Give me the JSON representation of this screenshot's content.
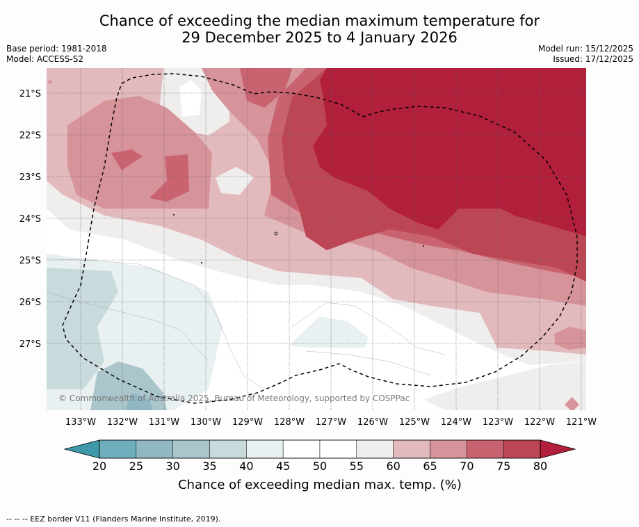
{
  "header": {
    "title_line1": "Chance of exceeding the median maximum temperature for",
    "title_line2": "29 December 2025 to 4 January 2026",
    "base_period": "Base period: 1981-2018",
    "model": "Model: ACCESS-S2",
    "model_run": "Model run: 15/12/2025",
    "issued": "Issued: 17/12/2025"
  },
  "map": {
    "lat_labels": [
      "21°S",
      "22°S",
      "23°S",
      "24°S",
      "25°S",
      "26°S",
      "27°S"
    ],
    "lon_labels": [
      "133°W",
      "132°W",
      "131°W",
      "130°W",
      "129°W",
      "128°W",
      "127°W",
      "126°W",
      "125°W",
      "124°W",
      "123°W",
      "122°W",
      "121°W"
    ],
    "copyright": "© Commonwealth of Australia 2025, Bureau of Meteorology, supported by COSPPac"
  },
  "colorbar": {
    "ticks": [
      "20",
      "25",
      "30",
      "35",
      "40",
      "45",
      "50",
      "55",
      "60",
      "65",
      "70",
      "75",
      "80"
    ],
    "colors": [
      "#6eaebd",
      "#8fb8c4",
      "#aac6cc",
      "#c9dadd",
      "#e9f0f2",
      "#ffffff",
      "#ffffff",
      "#efeeed",
      "#e2b9bd",
      "#d6939a",
      "#c9636f",
      "#bd4655"
    ],
    "under_color": "#3e9aaa",
    "over_color": "#b11f3a",
    "label": "Chance of exceeding median max. temp. (%)"
  },
  "legend": {
    "eez": "-- -- -- EEZ border V11 (Flanders Marine Institute, 2019)."
  }
}
